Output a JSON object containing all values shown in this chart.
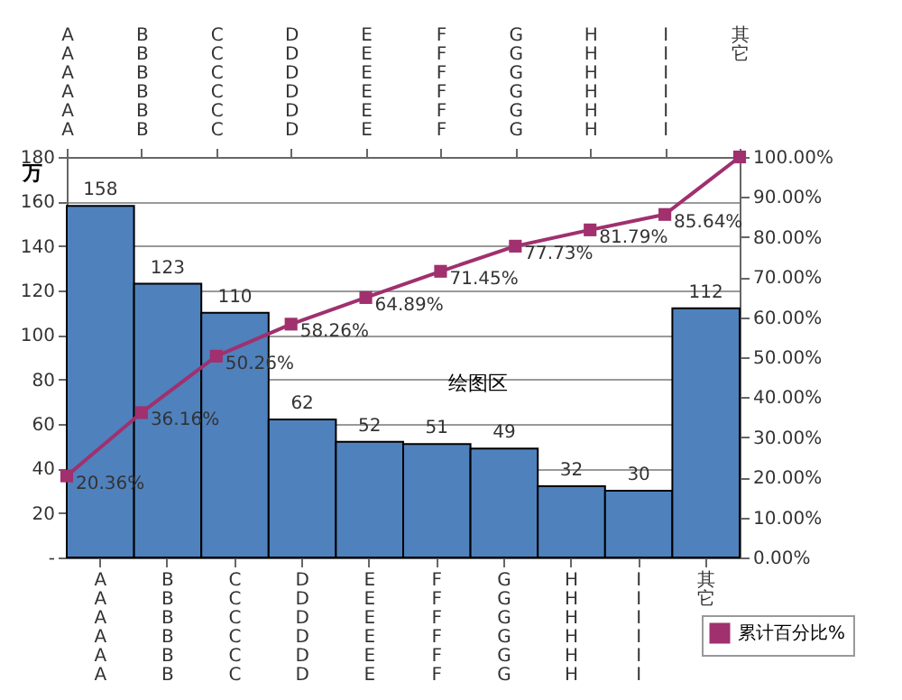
{
  "chart_data": {
    "type": "bar",
    "ylabel": "万",
    "categories": [
      "AAAAAA",
      "BBBBBB",
      "CCCCCC",
      "DDDDDD",
      "EEEEEE",
      "FFFFFF",
      "GGGGGG",
      "HHHHHH",
      "IIIIII",
      "其它"
    ],
    "series": [
      {
        "color": "#4f81bd",
        "values": [
          158,
          123,
          110,
          62,
          52,
          51,
          49,
          32,
          30,
          112
        ],
        "value_labels": [
          "158",
          "123",
          "110",
          "62",
          "52",
          "51",
          "49",
          "32",
          "30",
          "112"
        ]
      },
      {
        "type": "line",
        "name": "累计百分比%",
        "color": "#a0306e",
        "axis": "y2",
        "marker": "square",
        "values": [
          20.36,
          36.16,
          50.26,
          58.26,
          64.89,
          71.45,
          77.73,
          81.79,
          85.64,
          100
        ],
        "value_labels": [
          "20.36%",
          "36.16%",
          "50.26%",
          "58.26%",
          "64.89%",
          "71.45%",
          "77.73%",
          "81.79%",
          "85.64%",
          null
        ]
      }
    ],
    "ylim": [
      0,
      180
    ],
    "yticks": [
      {
        "value": 0,
        "label": "-"
      },
      20,
      40,
      60,
      80,
      100,
      120,
      140,
      160,
      180
    ],
    "y2lim": [
      0,
      100
    ],
    "y2ticks": [
      {
        "value": 0,
        "label": "0.00%"
      },
      {
        "value": 10,
        "label": "10.00%"
      },
      {
        "value": 20,
        "label": "20.00%"
      },
      {
        "value": 30,
        "label": "30.00%"
      },
      {
        "value": 40,
        "label": "40.00%"
      },
      {
        "value": 50,
        "label": "50.00%"
      },
      {
        "value": 60,
        "label": "60.00%"
      },
      {
        "value": 70,
        "label": "70.00%"
      },
      {
        "value": 80,
        "label": "80.00%"
      },
      {
        "value": 90,
        "label": "90.00%"
      },
      {
        "value": 100,
        "label": "100.00%"
      }
    ],
    "grid": "y",
    "legend": "bottom right",
    "annotations": [
      "绘图区"
    ]
  }
}
